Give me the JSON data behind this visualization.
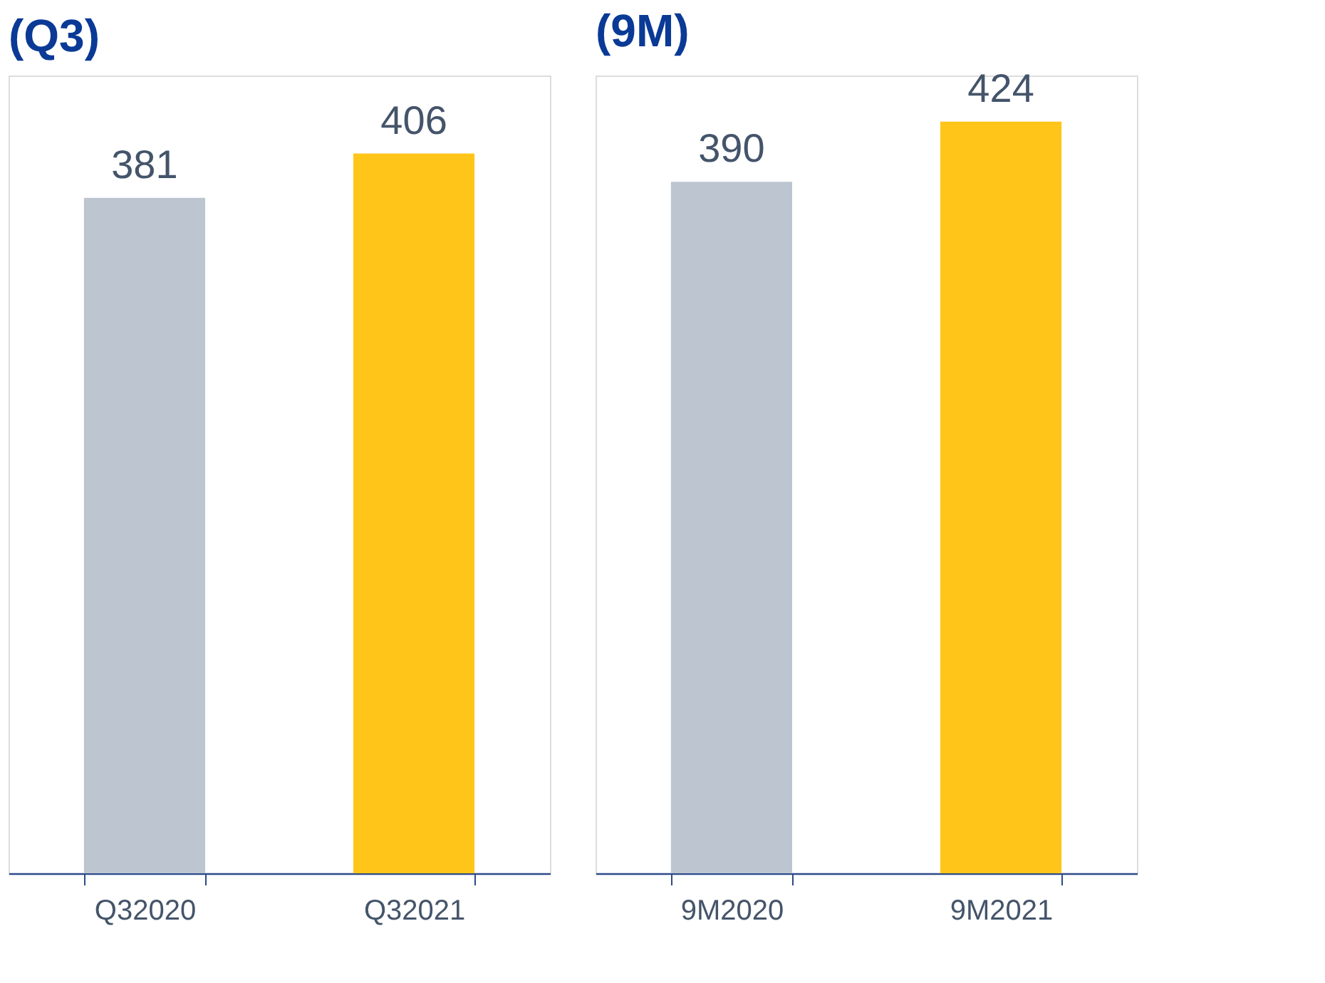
{
  "chart_data": [
    {
      "type": "bar",
      "title": "(Q3)",
      "categories": [
        "Q32020",
        "Q32021"
      ],
      "values": [
        381,
        406
      ],
      "colors": [
        "#bcc5d0",
        "#ffc519"
      ],
      "data_labels": true
    },
    {
      "type": "bar",
      "title": "(9M)",
      "categories": [
        "9M2020",
        "9M2021"
      ],
      "values": [
        390,
        424
      ],
      "colors": [
        "#bcc5d0",
        "#ffc519"
      ],
      "data_labels": true
    }
  ]
}
